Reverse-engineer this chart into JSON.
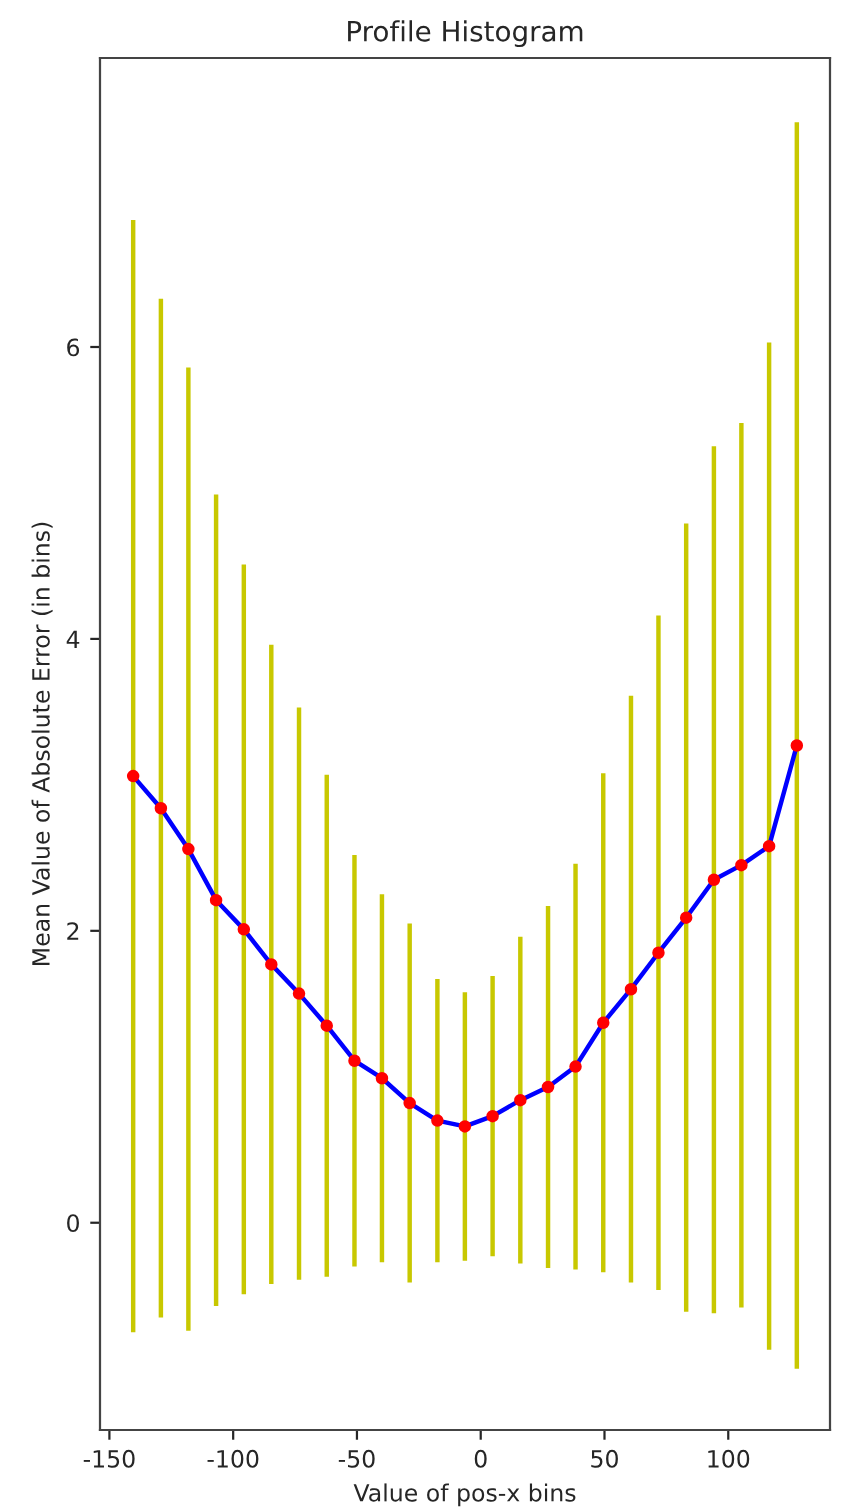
{
  "chart_data": {
    "type": "line",
    "title": "Profile Histogram",
    "xlabel": "Value of pos-x bins",
    "ylabel": "Mean Value of Absolute Error (in bins)",
    "x": [
      -140.4,
      -129.2,
      -118.1,
      -106.9,
      -95.7,
      -84.6,
      -73.4,
      -62.2,
      -51.0,
      -39.9,
      -28.7,
      -17.5,
      -6.4,
      4.8,
      16.0,
      27.2,
      38.3,
      49.5,
      60.7,
      71.8,
      83.0,
      94.2,
      105.3,
      116.5,
      127.7
    ],
    "series": [
      {
        "color": "#0000ff",
        "values": [
          3.06,
          2.84,
          2.56,
          2.21,
          2.01,
          1.77,
          1.57,
          1.35,
          1.11,
          0.99,
          0.82,
          0.7,
          0.66,
          0.73,
          0.84,
          0.93,
          1.07,
          1.37,
          1.6,
          1.85,
          2.09,
          2.35,
          2.45,
          2.58,
          3.27
        ],
        "errors": [
          3.81,
          3.49,
          3.3,
          2.78,
          2.5,
          2.19,
          1.96,
          1.72,
          1.41,
          1.26,
          1.23,
          0.97,
          0.92,
          0.96,
          1.12,
          1.24,
          1.39,
          1.71,
          2.01,
          2.31,
          2.7,
          2.97,
          3.03,
          3.45,
          4.27
        ]
      }
    ],
    "marker": "circle",
    "line_style": "solid",
    "grid": false,
    "xlim": [
      -153.8,
      141.1
    ],
    "xticks": [
      -150,
      -100,
      -50,
      0,
      50,
      100
    ],
    "ylim": [
      -1.42,
      7.98
    ],
    "yticks": [
      0,
      2,
      4,
      6
    ]
  }
}
